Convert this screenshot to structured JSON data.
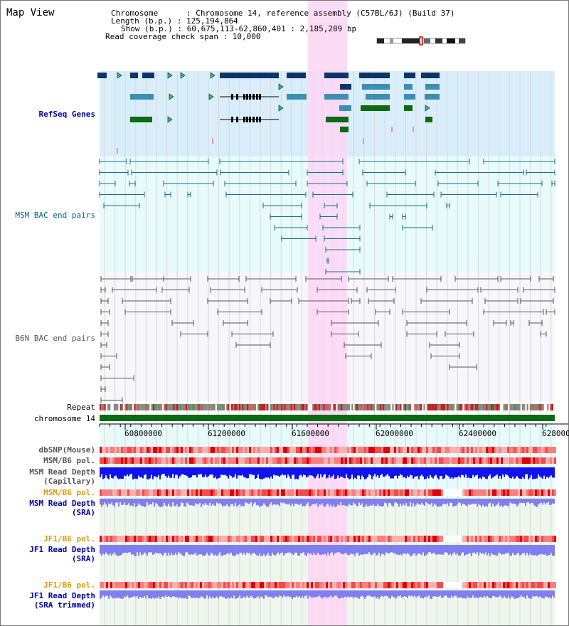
{
  "title": "Map View",
  "info": {
    "chromosome": "Chromosome      : Chromosome 14, reference assembly (C57BL/6J) (Build 37)",
    "length": "Length (b.p.) : 125,194,864",
    "show": "Show (b.p.) : 60,675,113-62,860,401 : 2,185,289 bp",
    "coverage": "Read coverage check span : 10,000"
  },
  "tracks": {
    "refseq": "RefSeq Genes",
    "msm_bac": "MSM BAC end pairs",
    "b6n_bac": "B6N BAC end pairs",
    "repeat": "Repeat",
    "chromosome": "chromosome 14",
    "dbsnp": "dbSNP(Mouse)",
    "msm_b6_pol_1": "MSM/B6 pol.",
    "msm_depth_cap_1": "MSM Read Depth",
    "msm_depth_cap_2": "(Capillary)",
    "msm_b6_pol_2": "MSM/B6 pol.",
    "msm_depth_sra_1": "MSM Read Depth",
    "msm_depth_sra_2": "(SRA)",
    "jf1_b6_pol_1": "JF1/B6 pol.",
    "jf1_depth_sra_1": "JF1 Read Depth",
    "jf1_depth_sra_2": "(SRA)",
    "jf1_b6_pol_2": "JF1/B6 pol.",
    "jf1_depth_trim_1": "JF1 Read Depth",
    "jf1_depth_trim_2": "(SRA trimmed)"
  },
  "axis_ticks": [
    "60800000",
    "61200000",
    "61600000",
    "62000000",
    "62400000",
    "628000"
  ],
  "colors": {
    "refseq_bg": "#d9eefa",
    "msm_bg": "#e8fbfb",
    "b6n_bg": "#f6f6fb",
    "highlight": "#fbd6f3",
    "refseq_dark": "#0a3566",
    "refseq_teal": "#3b8fb3",
    "refseq_green": "#0b6b12",
    "msm_line": "#1a6e8c",
    "b6n_line": "#555555",
    "chrom_bar": "#0b6b12",
    "depth_blue": "#1212ee",
    "depth_light": "#7f7fef",
    "label_blue": "#0000aa",
    "label_teal": "#006a7a",
    "label_orange": "#e39a00",
    "label_gray": "#555555"
  }
}
